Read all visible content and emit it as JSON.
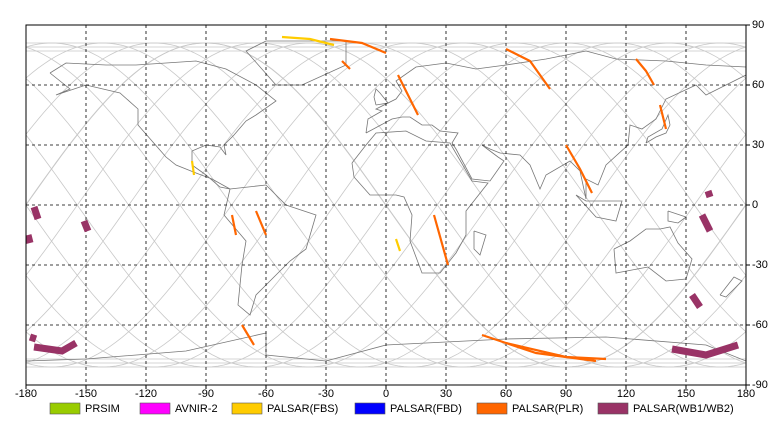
{
  "chart_data": {
    "type": "map",
    "xlim": [
      -180,
      180
    ],
    "ylim": [
      -90,
      90
    ],
    "xticks": [
      -180,
      -150,
      -120,
      -90,
      -60,
      -30,
      0,
      30,
      60,
      90,
      120,
      150,
      180
    ],
    "yticks": [
      90,
      60,
      30,
      0,
      -30,
      -60,
      -90
    ],
    "grid": true,
    "series": [
      {
        "name": "PRSIM",
        "color": "#99cc00"
      },
      {
        "name": "AVNIR-2",
        "color": "#ff00ff"
      },
      {
        "name": "PALSAR(FBS)",
        "color": "#ffcc00",
        "segments": [
          {
            "lon": [
              -52,
              -38,
              -26
            ],
            "lat": [
              84,
              83,
              80
            ]
          },
          {
            "lon": [
              -97,
              -96
            ],
            "lat": [
              22,
              15
            ]
          },
          {
            "lon": [
              5,
              7
            ],
            "lat": [
              -17,
              -23
            ]
          }
        ]
      },
      {
        "name": "PALSAR(FBD)",
        "color": "#0000ff"
      },
      {
        "name": "PALSAR(PLR)",
        "color": "#ff6600",
        "segments": [
          {
            "lon": [
              -28,
              -12,
              0
            ],
            "lat": [
              83,
              81,
              76
            ]
          },
          {
            "lon": [
              -22,
              -18
            ],
            "lat": [
              72,
              68
            ]
          },
          {
            "lon": [
              6,
              11,
              16
            ],
            "lat": [
              65,
              55,
              45
            ]
          },
          {
            "lon": [
              60,
              72,
              82
            ],
            "lat": [
              78,
              72,
              58
            ]
          },
          {
            "lon": [
              90,
              97,
              103
            ],
            "lat": [
              30,
              18,
              6
            ]
          },
          {
            "lon": [
              125,
              130,
              134
            ],
            "lat": [
              73,
              67,
              60
            ]
          },
          {
            "lon": [
              137,
              140
            ],
            "lat": [
              50,
              38
            ]
          },
          {
            "lon": [
              -65,
              -60
            ],
            "lat": [
              -3,
              -15
            ]
          },
          {
            "lon": [
              -72,
              -66
            ],
            "lat": [
              -60,
              -70
            ]
          },
          {
            "lon": [
              24,
              31
            ],
            "lat": [
              -5,
              -30
            ]
          },
          {
            "lon": [
              48,
              75,
              105
            ],
            "lat": [
              -65,
              -74,
              -78
            ]
          },
          {
            "lon": [
              60,
              90,
              110
            ],
            "lat": [
              -69,
              -76,
              -77
            ]
          },
          {
            "lon": [
              -77,
              -75
            ],
            "lat": [
              -5,
              -15
            ]
          }
        ]
      },
      {
        "name": "PALSAR(WB1/WB2)",
        "color": "#993366",
        "segments": [
          {
            "lon": [
              -176,
              -174
            ],
            "lat": [
              -1,
              -7
            ]
          },
          {
            "lon": [
              -179,
              -178
            ],
            "lat": [
              -15,
              -19
            ]
          },
          {
            "lon": [
              -151,
              -149
            ],
            "lat": [
              -8,
              -13
            ]
          },
          {
            "lon": [
              -176,
              -162,
              -155
            ],
            "lat": [
              -71,
              -73,
              -69
            ]
          },
          {
            "lon": [
              -178,
              -175
            ],
            "lat": [
              -66,
              -67
            ]
          },
          {
            "lon": [
              158,
              162
            ],
            "lat": [
              -5,
              -13
            ]
          },
          {
            "lon": [
              161,
              162
            ],
            "lat": [
              7,
              4
            ]
          },
          {
            "lon": [
              153,
              157
            ],
            "lat": [
              -45,
              -51
            ]
          },
          {
            "lon": [
              143,
              160,
              176
            ],
            "lat": [
              -72,
              -75,
              -70
            ]
          }
        ]
      }
    ]
  }
}
